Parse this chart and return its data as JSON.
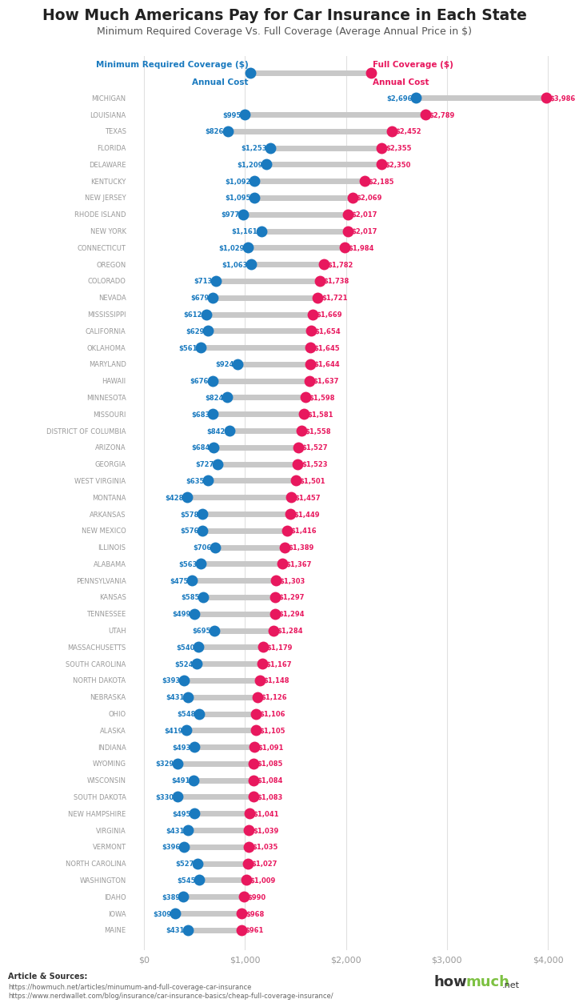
{
  "title": "How Much Americans Pay for Car Insurance in Each State",
  "subtitle": "Minimum Required Coverage Vs. Full Coverage (Average Annual Price in $)",
  "states": [
    "MICHIGAN",
    "LOUISIANA",
    "TEXAS",
    "FLORIDA",
    "DELAWARE",
    "KENTUCKY",
    "NEW JERSEY",
    "RHODE ISLAND",
    "NEW YORK",
    "CONNECTICUT",
    "OREGON",
    "COLORADO",
    "NEVADA",
    "MISSISSIPPI",
    "CALIFORNIA",
    "OKLAHOMA",
    "MARYLAND",
    "HAWAII",
    "MINNESOTA",
    "MISSOURI",
    "DISTRICT OF COLUMBIA",
    "ARIZONA",
    "GEORGIA",
    "WEST VIRGINIA",
    "MONTANA",
    "ARKANSAS",
    "NEW MEXICO",
    "ILLINOIS",
    "ALABAMA",
    "PENNSYLVANIA",
    "KANSAS",
    "TENNESSEE",
    "UTAH",
    "MASSACHUSETTS",
    "SOUTH CAROLINA",
    "NORTH DAKOTA",
    "NEBRASKA",
    "OHIO",
    "ALASKA",
    "INDIANA",
    "WYOMING",
    "WISCONSIN",
    "SOUTH DAKOTA",
    "NEW HAMPSHIRE",
    "VIRGINIA",
    "VERMONT",
    "NORTH CAROLINA",
    "WASHINGTON",
    "IDAHO",
    "IOWA",
    "MAINE"
  ],
  "min_coverage": [
    2696,
    995,
    826,
    1253,
    1209,
    1092,
    1095,
    977,
    1161,
    1029,
    1063,
    713,
    679,
    612,
    629,
    561,
    924,
    676,
    824,
    683,
    842,
    684,
    727,
    635,
    428,
    578,
    576,
    706,
    563,
    475,
    585,
    499,
    695,
    540,
    524,
    393,
    431,
    548,
    419,
    493,
    329,
    491,
    330,
    495,
    431,
    396,
    527,
    545,
    389,
    309,
    431
  ],
  "full_coverage": [
    3986,
    2789,
    2452,
    2355,
    2350,
    2185,
    2069,
    2017,
    2017,
    1984,
    1782,
    1738,
    1721,
    1669,
    1654,
    1645,
    1644,
    1637,
    1598,
    1581,
    1558,
    1527,
    1523,
    1501,
    1457,
    1449,
    1416,
    1389,
    1367,
    1303,
    1297,
    1294,
    1284,
    1179,
    1167,
    1148,
    1126,
    1106,
    1105,
    1091,
    1085,
    1084,
    1083,
    1041,
    1039,
    1035,
    1027,
    1009,
    990,
    968,
    961
  ],
  "min_color": "#1a7abf",
  "full_color": "#e8185e",
  "bar_color": "#c8c8c8",
  "bg_color": "#ffffff",
  "title_color": "#222222",
  "subtitle_color": "#555555",
  "state_color": "#999999",
  "xmax": 4000,
  "article_text": "Article & Sources:",
  "source1": "https://howmuch.net/articles/minumum-and-full-coverage-car-insurance",
  "source2": "https://www.nerdwallet.com/blog/insurance/car-insurance-basics/cheap-full-coverage-insurance/"
}
